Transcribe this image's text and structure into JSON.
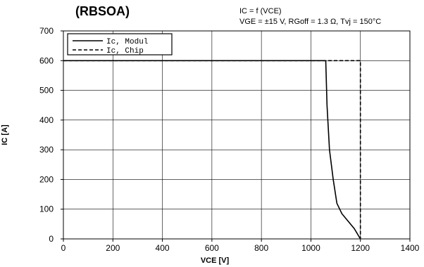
{
  "chart_data": {
    "type": "line",
    "title": "(RBSOA)",
    "subtitle_line1": "IC = f (VCE)",
    "subtitle_line2": "VGE = ±15 V, RGoff = 1.3 Ω, Tvj = 150°C",
    "xlabel": "VCE [V]",
    "ylabel": "IC [A]",
    "xlim": [
      0,
      1400
    ],
    "ylim": [
      0,
      700
    ],
    "xticks": [
      "0",
      "200",
      "400",
      "600",
      "800",
      "1000",
      "1200",
      "1400"
    ],
    "yticks": [
      "0",
      "100",
      "200",
      "300",
      "400",
      "500",
      "600",
      "700"
    ],
    "grid": true,
    "legend_position": "top-left",
    "series": [
      {
        "name": "Ic, Modul",
        "style": "solid",
        "x": [
          0,
          1060,
          1065,
          1075,
          1090,
          1105,
          1125,
          1150,
          1175,
          1200
        ],
        "y": [
          600,
          600,
          450,
          300,
          200,
          120,
          85,
          60,
          35,
          0
        ]
      },
      {
        "name": "Ic, Chip",
        "style": "dashed",
        "x": [
          0,
          1200,
          1200
        ],
        "y": [
          600,
          600,
          0
        ]
      }
    ]
  }
}
